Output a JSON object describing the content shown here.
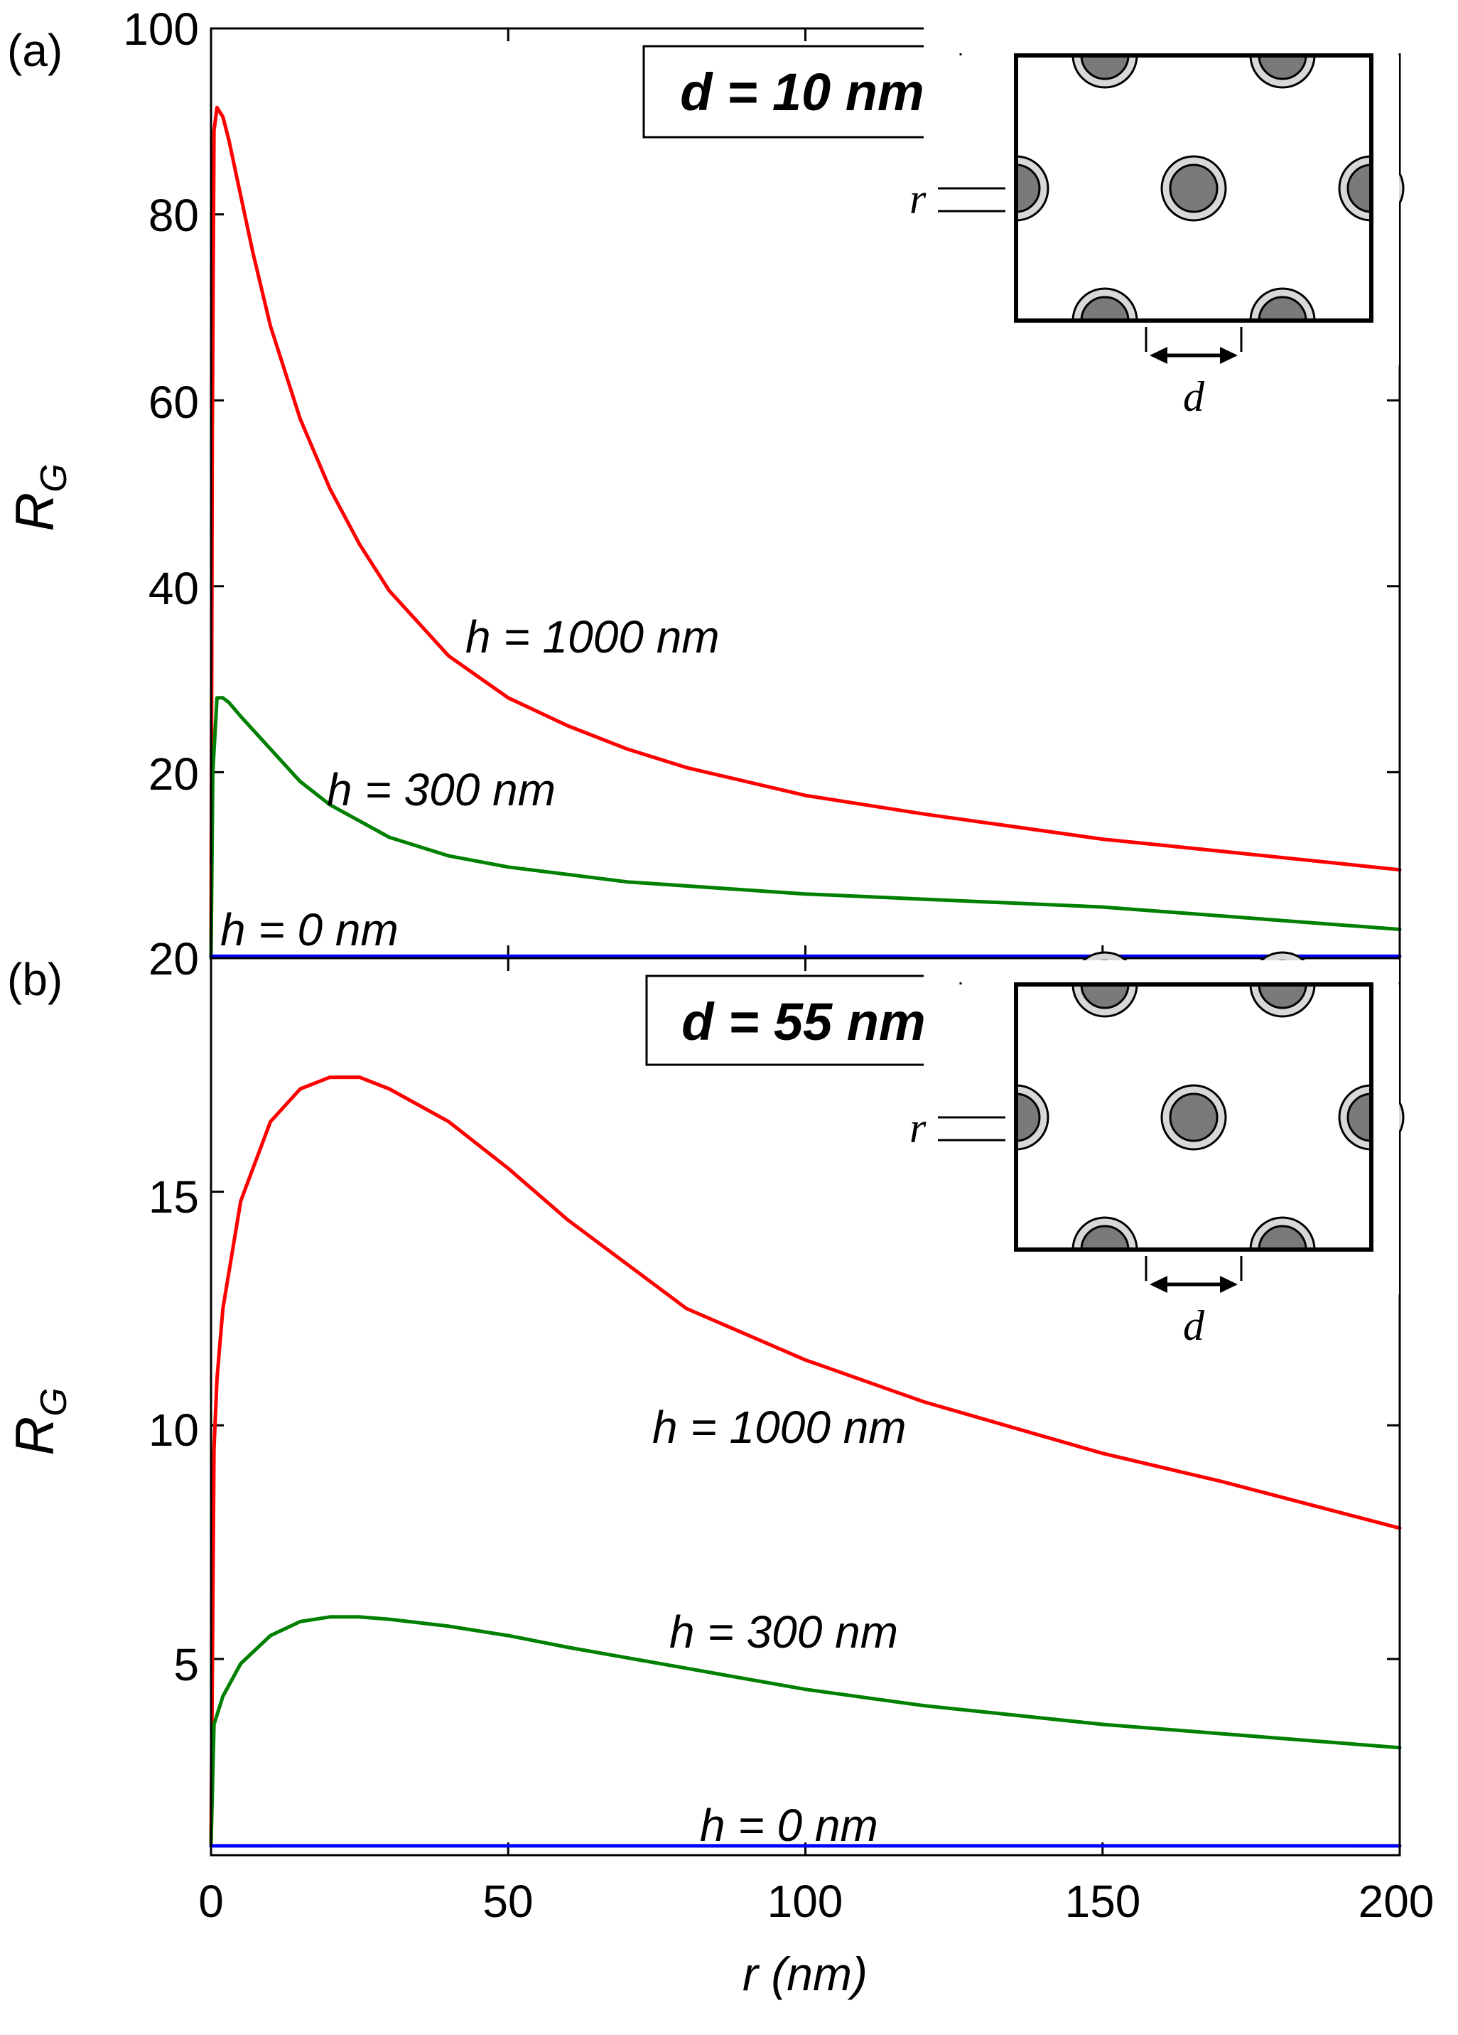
{
  "chart_data": [
    {
      "type": "line",
      "panel_label": "(a)",
      "box_label": "d = 10 nm",
      "ylabel_main": "R",
      "ylabel_sub": "G",
      "xlabel": "r (nm)",
      "xlim": [
        0,
        200
      ],
      "ylim": [
        0,
        100
      ],
      "yticks": [
        "",
        "20",
        "40",
        "60",
        "80",
        "100"
      ],
      "series": [
        {
          "name": "h = 1000 nm",
          "color": "#ff0000",
          "x": [
            0,
            0.2,
            0.5,
            1,
            2,
            3,
            5,
            7,
            10,
            15,
            20,
            25,
            30,
            40,
            50,
            60,
            70,
            80,
            100,
            120,
            150,
            170,
            200
          ],
          "y": [
            0,
            55,
            89,
            91.5,
            90.5,
            88,
            82,
            76,
            68,
            58,
            50.5,
            44.5,
            39.5,
            32.5,
            28,
            25,
            22.5,
            20.5,
            17.5,
            15.5,
            12.8,
            11.5,
            9.5
          ]
        },
        {
          "name": "h = 300 nm",
          "color": "#008000",
          "x": [
            0,
            0.3,
            1,
            2,
            3,
            5,
            10,
            15,
            20,
            30,
            40,
            50,
            70,
            100,
            150,
            200
          ],
          "y": [
            0,
            20,
            28,
            28,
            27.5,
            26,
            22.5,
            19,
            16.5,
            13,
            11,
            9.8,
            8.2,
            6.9,
            5.5,
            3.1
          ]
        },
        {
          "name": "h = 0 nm",
          "color": "#0000ff",
          "x": [
            0,
            200
          ],
          "y": [
            0.2,
            0.2
          ]
        }
      ],
      "annotations": [
        "h = 1000 nm",
        "h = 300 nm",
        "h = 0 nm"
      ],
      "inset": {
        "r_label": "r",
        "d_label": "d"
      }
    },
    {
      "type": "line",
      "panel_label": "(b)",
      "box_label": "d = 55 nm",
      "ylabel_main": "R",
      "ylabel_sub": "G",
      "xlabel": "r (nm)",
      "xlim": [
        0,
        200
      ],
      "ylim": [
        0.8,
        20
      ],
      "yticks": [
        "5",
        "10",
        "15",
        "20"
      ],
      "xticks": [
        "0",
        "50",
        "100",
        "150",
        "200"
      ],
      "series": [
        {
          "name": "h = 1000 nm",
          "color": "#ff0000",
          "x": [
            0,
            0.5,
            1,
            2,
            5,
            10,
            15,
            20,
            25,
            30,
            40,
            50,
            60,
            80,
            100,
            120,
            150,
            170,
            200
          ],
          "y": [
            1,
            9.5,
            11,
            12.5,
            14.8,
            16.5,
            17.2,
            17.45,
            17.45,
            17.2,
            16.5,
            15.5,
            14.4,
            12.5,
            11.4,
            10.5,
            9.4,
            8.8,
            7.8
          ]
        },
        {
          "name": "h = 300 nm",
          "color": "#008000",
          "x": [
            0,
            0.5,
            1,
            2,
            5,
            10,
            15,
            20,
            25,
            30,
            40,
            50,
            60,
            80,
            100,
            120,
            150,
            170,
            200
          ],
          "y": [
            1,
            3.6,
            3.8,
            4.2,
            4.9,
            5.5,
            5.8,
            5.9,
            5.9,
            5.85,
            5.7,
            5.5,
            5.25,
            4.8,
            4.35,
            4.0,
            3.6,
            3.4,
            3.1
          ]
        },
        {
          "name": "h = 0 nm",
          "color": "#0000ff",
          "x": [
            0,
            200
          ],
          "y": [
            1,
            1
          ]
        }
      ],
      "annotations": [
        "h = 1000 nm",
        "h = 300 nm",
        "h = 0 nm"
      ],
      "inset": {
        "r_label": "r",
        "d_label": "d"
      }
    }
  ]
}
